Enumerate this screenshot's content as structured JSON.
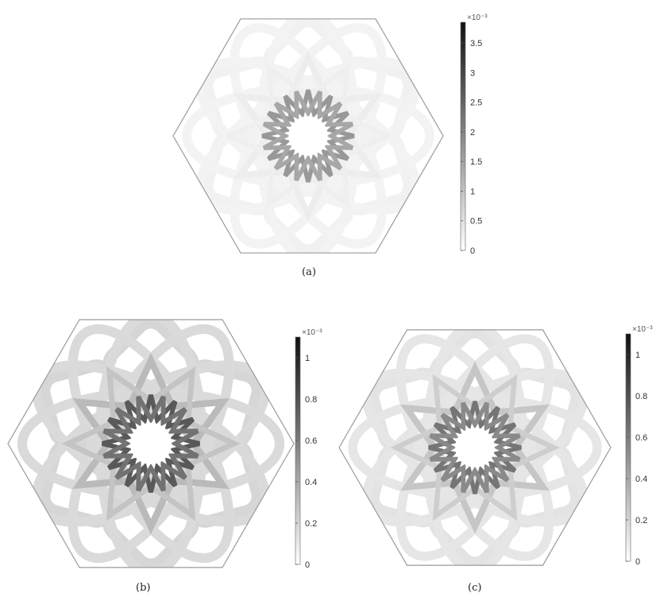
{
  "figure": {
    "panels": [
      {
        "id": "a",
        "caption": "(a)",
        "colorbar": {
          "exponent": "×10⁻³",
          "max_value": 3.85,
          "tick_values": [
            0,
            0.5,
            1,
            1.5,
            2,
            2.5,
            3,
            3.5
          ],
          "tick_labels": [
            "0",
            "0.5",
            "1",
            "1.5",
            "2",
            "2.5",
            "3",
            "3.5"
          ]
        },
        "outer_ring_intensity": 0.06,
        "mid_intensity": 0.08,
        "star_intensity": 0.45
      },
      {
        "id": "b",
        "caption": "(b)",
        "colorbar": {
          "exponent": "×10⁻³",
          "max_value": 1.1,
          "tick_values": [
            0,
            0.2,
            0.4,
            0.6,
            0.8,
            1
          ],
          "tick_labels": [
            "0",
            "0.2",
            "0.4",
            "0.6",
            "0.8",
            "1"
          ]
        },
        "outer_ring_intensity": 0.18,
        "mid_intensity": 0.3,
        "star_intensity": 0.72
      },
      {
        "id": "c",
        "caption": "(c)",
        "colorbar": {
          "exponent": "×10⁻³",
          "max_value": 1.1,
          "tick_values": [
            0,
            0.2,
            0.4,
            0.6,
            0.8,
            1
          ],
          "tick_labels": [
            "0",
            "0.2",
            "0.4",
            "0.6",
            "0.8",
            "1"
          ]
        },
        "outer_ring_intensity": 0.12,
        "mid_intensity": 0.25,
        "star_intensity": 0.6
      }
    ]
  }
}
